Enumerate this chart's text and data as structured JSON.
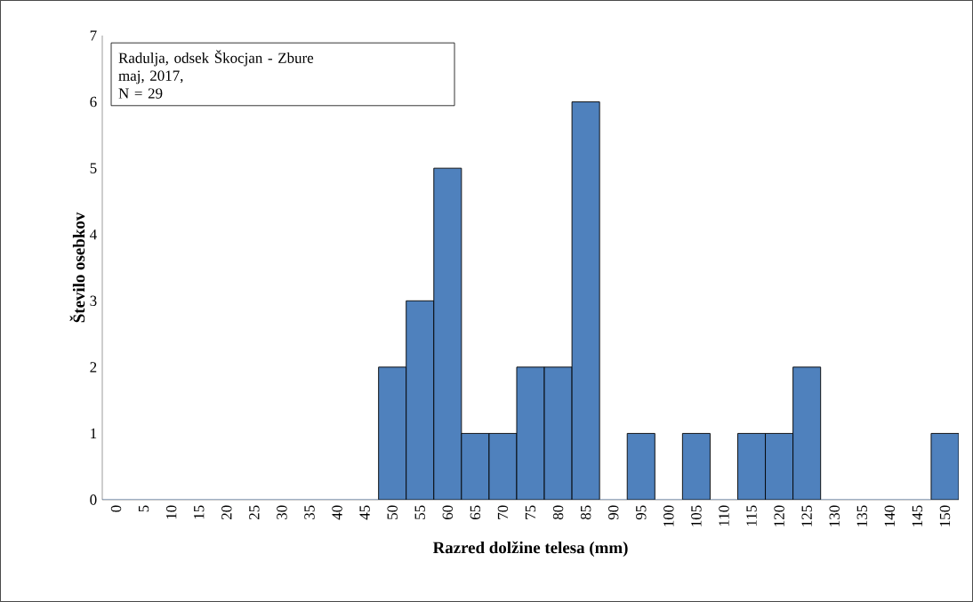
{
  "chart_data": {
    "type": "bar",
    "categories": [
      "0",
      "5",
      "10",
      "15",
      "20",
      "25",
      "30",
      "35",
      "40",
      "45",
      "50",
      "55",
      "60",
      "65",
      "70",
      "75",
      "80",
      "85",
      "90",
      "95",
      "100",
      "105",
      "110",
      "115",
      "120",
      "125",
      "130",
      "135",
      "140",
      "145",
      "150"
    ],
    "values": [
      0,
      0,
      0,
      0,
      0,
      0,
      0,
      0,
      0,
      0,
      2,
      3,
      5,
      1,
      1,
      2,
      2,
      6,
      0,
      1,
      0,
      1,
      0,
      1,
      1,
      2,
      0,
      0,
      0,
      0,
      1
    ],
    "color": "#4f81bd",
    "ylim": [
      0,
      7
    ],
    "yticks": [
      0,
      1,
      2,
      3,
      4,
      5,
      6,
      7
    ],
    "xlabel": "Razred dolžine telesa (mm)",
    "ylabel": "Število osebkov",
    "annotations": [
      "Radulja, odsek Škocjan - Zbure",
      "maj, 2017,",
      "N = 29"
    ]
  }
}
